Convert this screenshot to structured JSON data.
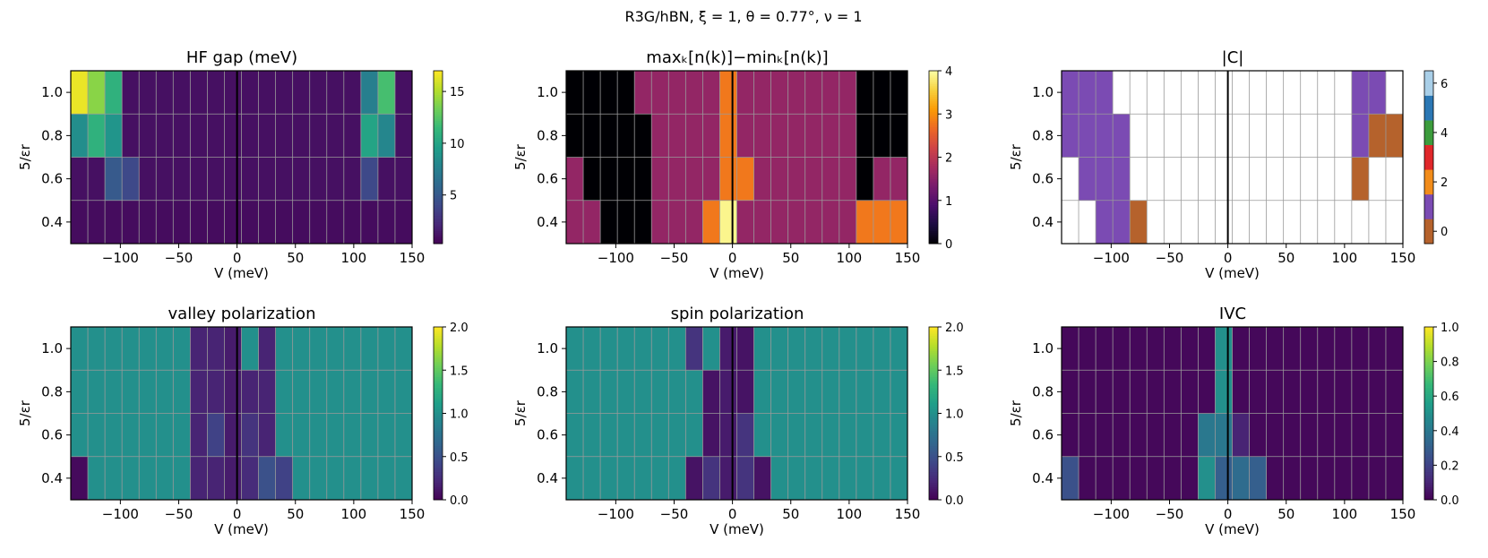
{
  "suptitle": "R3G/hBN,  ξ = 1,  θ = 0.77°,  ν = 1",
  "chart_data": [
    {
      "type": "heatmap",
      "title": "HF gap (meV)",
      "xlabel": "V (meV)",
      "ylabel": "5/εr",
      "x": [
        -135,
        -120,
        -105,
        -90,
        -75,
        -60,
        -45,
        -30,
        -15,
        0,
        15,
        30,
        45,
        60,
        75,
        90,
        105,
        120,
        135,
        150
      ],
      "y": [
        0.4,
        0.6,
        0.8,
        1.0
      ],
      "xlim": [
        -142.5,
        150
      ],
      "ylim": [
        0.3,
        1.1
      ],
      "xticks": [
        -100,
        -50,
        0,
        50,
        100,
        150
      ],
      "xticklabels": [
        "−100",
        "−50",
        "0",
        "50",
        "100",
        "150"
      ],
      "yticks": [
        0.4,
        0.6,
        0.8,
        1.0
      ],
      "yticklabels": [
        "0.4",
        "0.6",
        "0.8",
        "1.0"
      ],
      "colormap": "viridis",
      "clim": [
        0.3,
        17
      ],
      "colorbar_ticks": [
        5,
        10,
        15
      ],
      "colorbar_labels": [
        "5",
        "10",
        "15"
      ],
      "z": [
        [
          0.8,
          0.8,
          0.8,
          0.8,
          0.8,
          0.8,
          0.8,
          0.8,
          0.8,
          0.8,
          0.8,
          0.8,
          0.8,
          0.8,
          0.8,
          0.8,
          0.8,
          0.8,
          0.8,
          0.8
        ],
        [
          1.0,
          1.0,
          5.0,
          4.0,
          1.0,
          1.0,
          1.0,
          1.0,
          1.0,
          1.0,
          1.0,
          1.0,
          1.0,
          1.0,
          1.0,
          1.0,
          1.0,
          4.0,
          1.0,
          1.0
        ],
        [
          8.5,
          11.0,
          9.0,
          1.0,
          1.0,
          1.0,
          1.0,
          1.0,
          1.0,
          1.0,
          1.0,
          1.0,
          1.0,
          1.0,
          1.0,
          1.0,
          1.0,
          10.0,
          8.0,
          1.0
        ],
        [
          16.5,
          14.0,
          11.0,
          1.0,
          1.0,
          1.0,
          1.0,
          1.0,
          1.0,
          1.0,
          1.0,
          1.0,
          1.0,
          1.0,
          1.0,
          1.0,
          1.0,
          7.5,
          12.0,
          1.0
        ]
      ],
      "vline_x": 0
    },
    {
      "type": "heatmap",
      "title": "maxₖ[n(k)]−minₖ[n(k)]",
      "xlabel": "V (meV)",
      "ylabel": "5/εr",
      "x": [
        -135,
        -120,
        -105,
        -90,
        -75,
        -60,
        -45,
        -30,
        -15,
        0,
        15,
        30,
        45,
        60,
        75,
        90,
        105,
        120,
        135,
        150
      ],
      "y": [
        0.4,
        0.6,
        0.8,
        1.0
      ],
      "xlim": [
        -142.5,
        150
      ],
      "ylim": [
        0.3,
        1.1
      ],
      "xticks": [
        -100,
        -50,
        0,
        50,
        100,
        150
      ],
      "xticklabels": [
        "−100",
        "−50",
        "0",
        "50",
        "100",
        "150"
      ],
      "yticks": [
        0.4,
        0.6,
        0.8,
        1.0
      ],
      "yticklabels": [
        "0.4",
        "0.6",
        "0.8",
        "1.0"
      ],
      "colormap": "inferno",
      "clim": [
        0,
        4
      ],
      "colorbar_ticks": [
        0,
        1,
        2,
        3,
        4
      ],
      "colorbar_labels": [
        "0",
        "1",
        "2",
        "3",
        "4"
      ],
      "z": [
        [
          1.6,
          1.6,
          0,
          0,
          0,
          1.6,
          1.6,
          1.6,
          2.8,
          3.9,
          1.6,
          1.6,
          1.6,
          1.6,
          1.6,
          1.6,
          1.6,
          2.8,
          2.8,
          2.8
        ],
        [
          1.6,
          0,
          0,
          0,
          0,
          1.6,
          1.6,
          1.6,
          1.6,
          2.8,
          2.8,
          1.6,
          1.6,
          1.6,
          1.6,
          1.6,
          1.6,
          0,
          1.6,
          1.6
        ],
        [
          0,
          0,
          0,
          0,
          0,
          1.6,
          1.6,
          1.6,
          1.6,
          2.8,
          1.6,
          1.6,
          1.6,
          1.6,
          1.6,
          1.6,
          1.6,
          0,
          0,
          0
        ],
        [
          0,
          0,
          0,
          0,
          1.6,
          1.6,
          1.6,
          1.6,
          1.6,
          2.8,
          1.6,
          1.6,
          1.6,
          1.6,
          1.6,
          1.6,
          1.6,
          0,
          0,
          0
        ]
      ],
      "vline_x": 0
    },
    {
      "type": "heatmap",
      "title": "|C|",
      "xlabel": "V (meV)",
      "ylabel": "5/εr",
      "x": [
        -135,
        -120,
        -105,
        -90,
        -75,
        -60,
        -45,
        -30,
        -15,
        0,
        15,
        30,
        45,
        60,
        75,
        90,
        105,
        120,
        135,
        150
      ],
      "y": [
        0.4,
        0.6,
        0.8,
        1.0
      ],
      "xlim": [
        -142.5,
        150
      ],
      "ylim": [
        0.3,
        1.1
      ],
      "xticks": [
        -100,
        -50,
        0,
        50,
        100,
        150
      ],
      "xticklabels": [
        "−100",
        "−50",
        "0",
        "50",
        "100",
        "150"
      ],
      "yticks": [
        0.4,
        0.6,
        0.8,
        1.0
      ],
      "yticklabels": [
        "0.4",
        "0.6",
        "0.8",
        "1.0"
      ],
      "colormap": "discrete",
      "discrete_colors": [
        "#b5622c",
        "#7b4bb3",
        "#f28c1a",
        "#e0272a",
        "#3c9c3c",
        "#2b77b4",
        "#a9cfe8"
      ],
      "discrete_values": [
        0,
        1,
        2,
        3,
        4,
        5,
        6
      ],
      "clim": [
        -0.5,
        6.5
      ],
      "colorbar_ticks": [
        0,
        2,
        4,
        6
      ],
      "colorbar_labels": [
        "0",
        "2",
        "4",
        "6"
      ],
      "z": [
        [
          null,
          null,
          1,
          1,
          0,
          null,
          null,
          null,
          null,
          null,
          null,
          null,
          null,
          null,
          null,
          null,
          null,
          null,
          null,
          null
        ],
        [
          null,
          1,
          1,
          1,
          null,
          null,
          null,
          null,
          null,
          null,
          null,
          null,
          null,
          null,
          null,
          null,
          null,
          0,
          null,
          null
        ],
        [
          1,
          1,
          1,
          1,
          null,
          null,
          null,
          null,
          null,
          null,
          null,
          null,
          null,
          null,
          null,
          null,
          null,
          1,
          0,
          0
        ],
        [
          1,
          1,
          1,
          null,
          null,
          null,
          null,
          null,
          null,
          null,
          null,
          null,
          null,
          null,
          null,
          null,
          null,
          1,
          1,
          null
        ]
      ],
      "vline_x": 0
    },
    {
      "type": "heatmap",
      "title": "valley polarization",
      "xlabel": "V (meV)",
      "ylabel": "5/εr",
      "x": [
        -135,
        -120,
        -105,
        -90,
        -75,
        -60,
        -45,
        -30,
        -15,
        0,
        15,
        30,
        45,
        60,
        75,
        90,
        105,
        120,
        135,
        150
      ],
      "y": [
        0.4,
        0.6,
        0.8,
        1.0
      ],
      "xlim": [
        -142.5,
        150
      ],
      "ylim": [
        0.3,
        1.1
      ],
      "xticks": [
        -100,
        -50,
        0,
        50,
        100,
        150
      ],
      "xticklabels": [
        "−100",
        "−50",
        "0",
        "50",
        "100",
        "150"
      ],
      "yticks": [
        0.4,
        0.6,
        0.8,
        1.0
      ],
      "yticklabels": [
        "0.4",
        "0.6",
        "0.8",
        "1.0"
      ],
      "colormap": "viridis",
      "clim": [
        0,
        2
      ],
      "colorbar_ticks": [
        0,
        0.5,
        1,
        1.5,
        2
      ],
      "colorbar_labels": [
        "0.0",
        "0.5",
        "1.0",
        "1.5",
        "2.0"
      ],
      "z": [
        [
          0.05,
          1,
          1,
          1,
          1,
          1,
          1,
          0.2,
          0.2,
          0.15,
          0.25,
          0.5,
          0.4,
          1,
          1,
          1,
          1,
          1,
          1,
          1
        ],
        [
          1,
          1,
          1,
          1,
          1,
          1,
          1,
          0.2,
          0.4,
          0.15,
          0.3,
          0.2,
          1,
          1,
          1,
          1,
          1,
          1,
          1,
          1
        ],
        [
          1,
          1,
          1,
          1,
          1,
          1,
          1,
          0.2,
          0.2,
          0.15,
          0.2,
          0.2,
          1,
          1,
          1,
          1,
          1,
          1,
          1,
          1
        ],
        [
          1,
          1,
          1,
          1,
          1,
          1,
          1,
          0.2,
          0.2,
          0.15,
          1,
          0.2,
          1,
          1,
          1,
          1,
          1,
          1,
          1,
          1
        ]
      ],
      "vline_x": 0
    },
    {
      "type": "heatmap",
      "title": "spin polarization",
      "xlabel": "V (meV)",
      "ylabel": "5/εr",
      "x": [
        -135,
        -120,
        -105,
        -90,
        -75,
        -60,
        -45,
        -30,
        -15,
        0,
        15,
        30,
        45,
        60,
        75,
        90,
        105,
        120,
        135,
        150
      ],
      "y": [
        0.4,
        0.6,
        0.8,
        1.0
      ],
      "xlim": [
        -142.5,
        150
      ],
      "ylim": [
        0.3,
        1.1
      ],
      "xticks": [
        -100,
        -50,
        0,
        50,
        100,
        150
      ],
      "xticklabels": [
        "−100",
        "−50",
        "0",
        "50",
        "100",
        "150"
      ],
      "yticks": [
        0.4,
        0.6,
        0.8,
        1.0
      ],
      "yticklabels": [
        "0.4",
        "0.6",
        "0.8",
        "1.0"
      ],
      "colormap": "viridis",
      "clim": [
        0,
        2
      ],
      "colorbar_ticks": [
        0,
        0.5,
        1,
        1.5,
        2
      ],
      "colorbar_labels": [
        "0.0",
        "0.5",
        "1.0",
        "1.5",
        "2.0"
      ],
      "z": [
        [
          1,
          1,
          1,
          1,
          1,
          1,
          1,
          0.1,
          0.3,
          0.15,
          0.3,
          0.1,
          1,
          1,
          1,
          1,
          1,
          1,
          1,
          1
        ],
        [
          1,
          1,
          1,
          1,
          1,
          1,
          1,
          1,
          0.1,
          0.15,
          0.3,
          1,
          1,
          1,
          1,
          1,
          1,
          1,
          1,
          1
        ],
        [
          1,
          1,
          1,
          1,
          1,
          1,
          1,
          1,
          0.1,
          0.15,
          0.1,
          1,
          1,
          1,
          1,
          1,
          1,
          1,
          1,
          1
        ],
        [
          1,
          1,
          1,
          1,
          1,
          1,
          1,
          0.3,
          1,
          0.15,
          0.1,
          1,
          1,
          1,
          1,
          1,
          1,
          1,
          1,
          1
        ]
      ],
      "vline_x": 0
    },
    {
      "type": "heatmap",
      "title": "IVC",
      "xlabel": "V (meV)",
      "ylabel": "5/εr",
      "x": [
        -135,
        -120,
        -105,
        -90,
        -75,
        -60,
        -45,
        -30,
        -15,
        0,
        15,
        30,
        45,
        60,
        75,
        90,
        105,
        120,
        135,
        150
      ],
      "y": [
        0.4,
        0.6,
        0.8,
        1.0
      ],
      "xlim": [
        -142.5,
        150
      ],
      "ylim": [
        0.3,
        1.1
      ],
      "xticks": [
        -100,
        -50,
        0,
        50,
        100,
        150
      ],
      "xticklabels": [
        "−100",
        "−50",
        "0",
        "50",
        "100",
        "150"
      ],
      "yticks": [
        0.4,
        0.6,
        0.8,
        1.0
      ],
      "yticklabels": [
        "0.4",
        "0.6",
        "0.8",
        "1.0"
      ],
      "colormap": "viridis",
      "clim": [
        0,
        1
      ],
      "colorbar_ticks": [
        0,
        0.2,
        0.4,
        0.6,
        0.8,
        1
      ],
      "colorbar_labels": [
        "0.0",
        "0.2",
        "0.4",
        "0.6",
        "0.8",
        "1.0"
      ],
      "z": [
        [
          0.25,
          0.02,
          0.02,
          0.02,
          0.02,
          0.02,
          0.02,
          0.02,
          0.5,
          0.3,
          0.35,
          0.3,
          0.02,
          0.02,
          0.02,
          0.02,
          0.02,
          0.02,
          0.02,
          0.02
        ],
        [
          0.02,
          0.02,
          0.02,
          0.02,
          0.02,
          0.02,
          0.02,
          0.02,
          0.4,
          0.4,
          0.1,
          0.02,
          0.02,
          0.02,
          0.02,
          0.02,
          0.02,
          0.02,
          0.02,
          0.02
        ],
        [
          0.02,
          0.02,
          0.02,
          0.02,
          0.02,
          0.02,
          0.02,
          0.02,
          0.02,
          0.5,
          0.02,
          0.02,
          0.02,
          0.02,
          0.02,
          0.02,
          0.02,
          0.02,
          0.02,
          0.02
        ],
        [
          0.02,
          0.02,
          0.02,
          0.02,
          0.02,
          0.02,
          0.02,
          0.02,
          0.02,
          0.5,
          0.02,
          0.02,
          0.02,
          0.02,
          0.02,
          0.02,
          0.02,
          0.02,
          0.02,
          0.02
        ]
      ],
      "vline_x": 0
    }
  ]
}
